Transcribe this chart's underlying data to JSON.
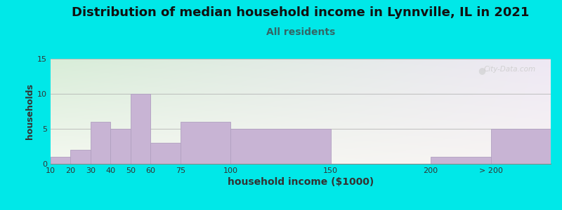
{
  "title": "Distribution of median household income in Lynnville, IL in 2021",
  "subtitle": "All residents",
  "xlabel": "household income ($1000)",
  "ylabel": "households",
  "bar_color": "#c8b4d4",
  "bar_edgecolor": "#b0a0c0",
  "background_color": "#00e8e8",
  "plot_bg_topleft": "#d8edd8",
  "plot_bg_topright": "#e8e4f0",
  "plot_bg_bottomleft": "#f0f4e8",
  "plot_bg_bottomright": "#f8eeee",
  "ylim": [
    0,
    15
  ],
  "yticks": [
    0,
    5,
    10,
    15
  ],
  "title_fontsize": 13,
  "subtitle_fontsize": 10,
  "subtitle_color": "#336666",
  "xlabel_fontsize": 10,
  "ylabel_fontsize": 9,
  "watermark": "City-Data.com",
  "xtick_labels": [
    "10",
    "20",
    "30",
    "40",
    "50",
    "60",
    "75",
    "100",
    "150",
    "200",
    "> 200"
  ],
  "values": [
    1,
    2,
    6,
    5,
    10,
    3,
    6,
    5,
    0,
    1,
    5
  ],
  "bar_lefts": [
    10,
    20,
    30,
    40,
    50,
    60,
    75,
    100,
    150,
    200,
    230
  ],
  "bar_widths": [
    10,
    10,
    10,
    10,
    10,
    15,
    25,
    50,
    50,
    30,
    30
  ],
  "xlim": [
    10,
    260
  ],
  "xtick_pos": [
    10,
    20,
    30,
    40,
    50,
    60,
    75,
    100,
    150,
    200,
    230
  ]
}
